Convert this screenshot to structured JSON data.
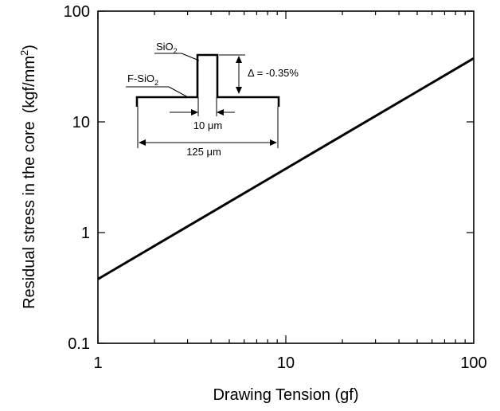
{
  "chart_data": {
    "type": "line",
    "xlabel": "Drawing Tension (gf)",
    "ylabel": "Residual stress in the core",
    "ylabel_unit_prefix": "(kgf/mm",
    "ylabel_unit_sup": "2",
    "ylabel_unit_suffix": ")",
    "x_scale": "log",
    "y_scale": "log",
    "xlim": [
      1,
      100
    ],
    "ylim": [
      0.1,
      100
    ],
    "x_ticks": [
      {
        "value": 1,
        "label": "1"
      },
      {
        "value": 10,
        "label": "10"
      },
      {
        "value": 100,
        "label": "100"
      }
    ],
    "y_ticks": [
      {
        "value": 0.1,
        "label": "0.1"
      },
      {
        "value": 1,
        "label": "1"
      },
      {
        "value": 10,
        "label": "10"
      },
      {
        "value": 100,
        "label": "100"
      }
    ],
    "grid": false,
    "line_color": "#000000",
    "series": [
      {
        "x": [
          1,
          100
        ],
        "y": [
          0.38,
          37.5
        ]
      }
    ],
    "inset": {
      "core_label": "SiO",
      "core_label_sub": "2",
      "clad_label": "F-SiO",
      "clad_label_sub": "2",
      "delta_label": "Δ = -0.35%",
      "core_width_label": "10 μm",
      "fiber_width_label": "125 μm"
    }
  }
}
